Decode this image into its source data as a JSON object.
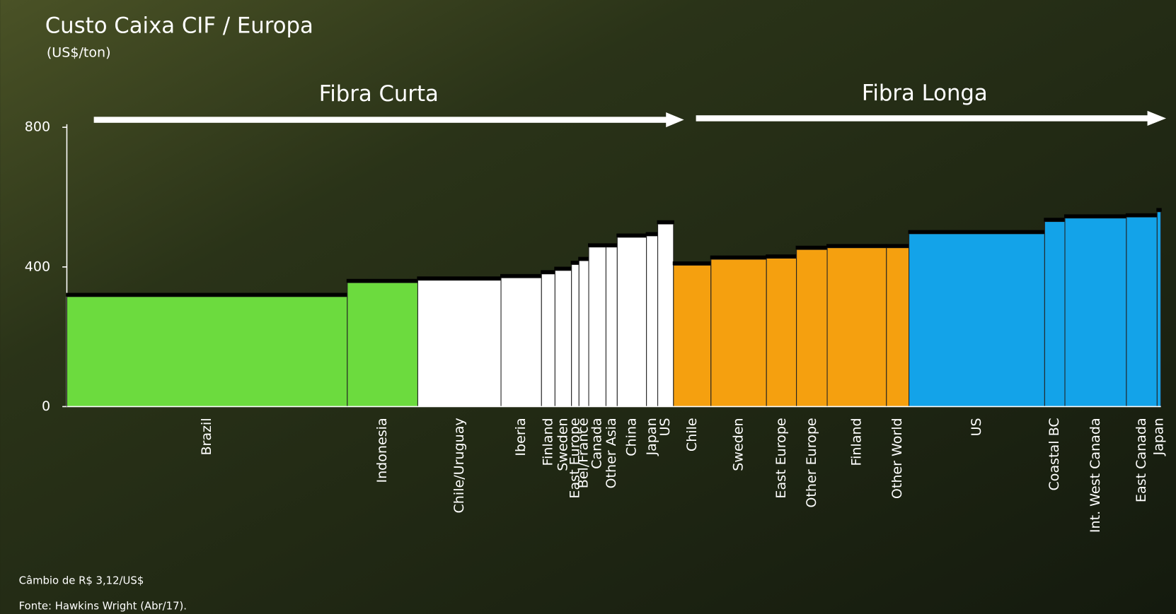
{
  "chart_data": {
    "type": "cost-curve",
    "title": "Custo Caixa CIF / Europa",
    "subtitle": "(US$/ton)",
    "ylim": [
      0,
      800
    ],
    "yticks": [
      0,
      400,
      800
    ],
    "series": [
      {
        "name": "Fibra Curta",
        "categories": [
          "Brazil",
          "Indonesia",
          "Chile/Uruguay",
          "Iberia",
          "Finland",
          "Sweden",
          "East Europe",
          "Bel/France",
          "Canada",
          "Other Asia",
          "China",
          "Japan",
          "US"
        ],
        "values": [
          315,
          355,
          362,
          369,
          380,
          390,
          407,
          418,
          457,
          457,
          485,
          489,
          523
        ],
        "widths": [
          374,
          94,
          111,
          54,
          18,
          22,
          10,
          13,
          23,
          15,
          39,
          15,
          21
        ],
        "colors": [
          "#6cdb3e",
          "#6cdb3e",
          "#ffffff",
          "#ffffff",
          "#ffffff",
          "#ffffff",
          "#ffffff",
          "#ffffff",
          "#ffffff",
          "#ffffff",
          "#ffffff",
          "#ffffff",
          "#ffffff"
        ]
      },
      {
        "name": "Fibra Longa",
        "categories": [
          "Chile",
          "Sweden",
          "East Europe",
          "Other Europe",
          "Finland",
          "Other World",
          "US",
          "Coastal BC",
          "Int. West Canada",
          "East Canada",
          "Japan"
        ],
        "values": [
          405,
          422,
          425,
          450,
          455,
          455,
          495,
          530,
          540,
          543,
          558
        ],
        "widths": [
          50,
          74,
          40,
          41,
          79,
          30,
          181,
          27,
          82,
          41,
          5
        ],
        "colors": [
          "#f5a00f",
          "#f5a00f",
          "#f5a00f",
          "#f5a00f",
          "#f5a00f",
          "#f5a00f",
          "#13a3e9",
          "#13a3e9",
          "#13a3e9",
          "#13a3e9",
          "#13a3e9"
        ]
      }
    ],
    "notes": [
      "Câmbio de R$ 3,12/US$",
      "Fonte: Hawkins Wright (Abr/17)."
    ]
  }
}
